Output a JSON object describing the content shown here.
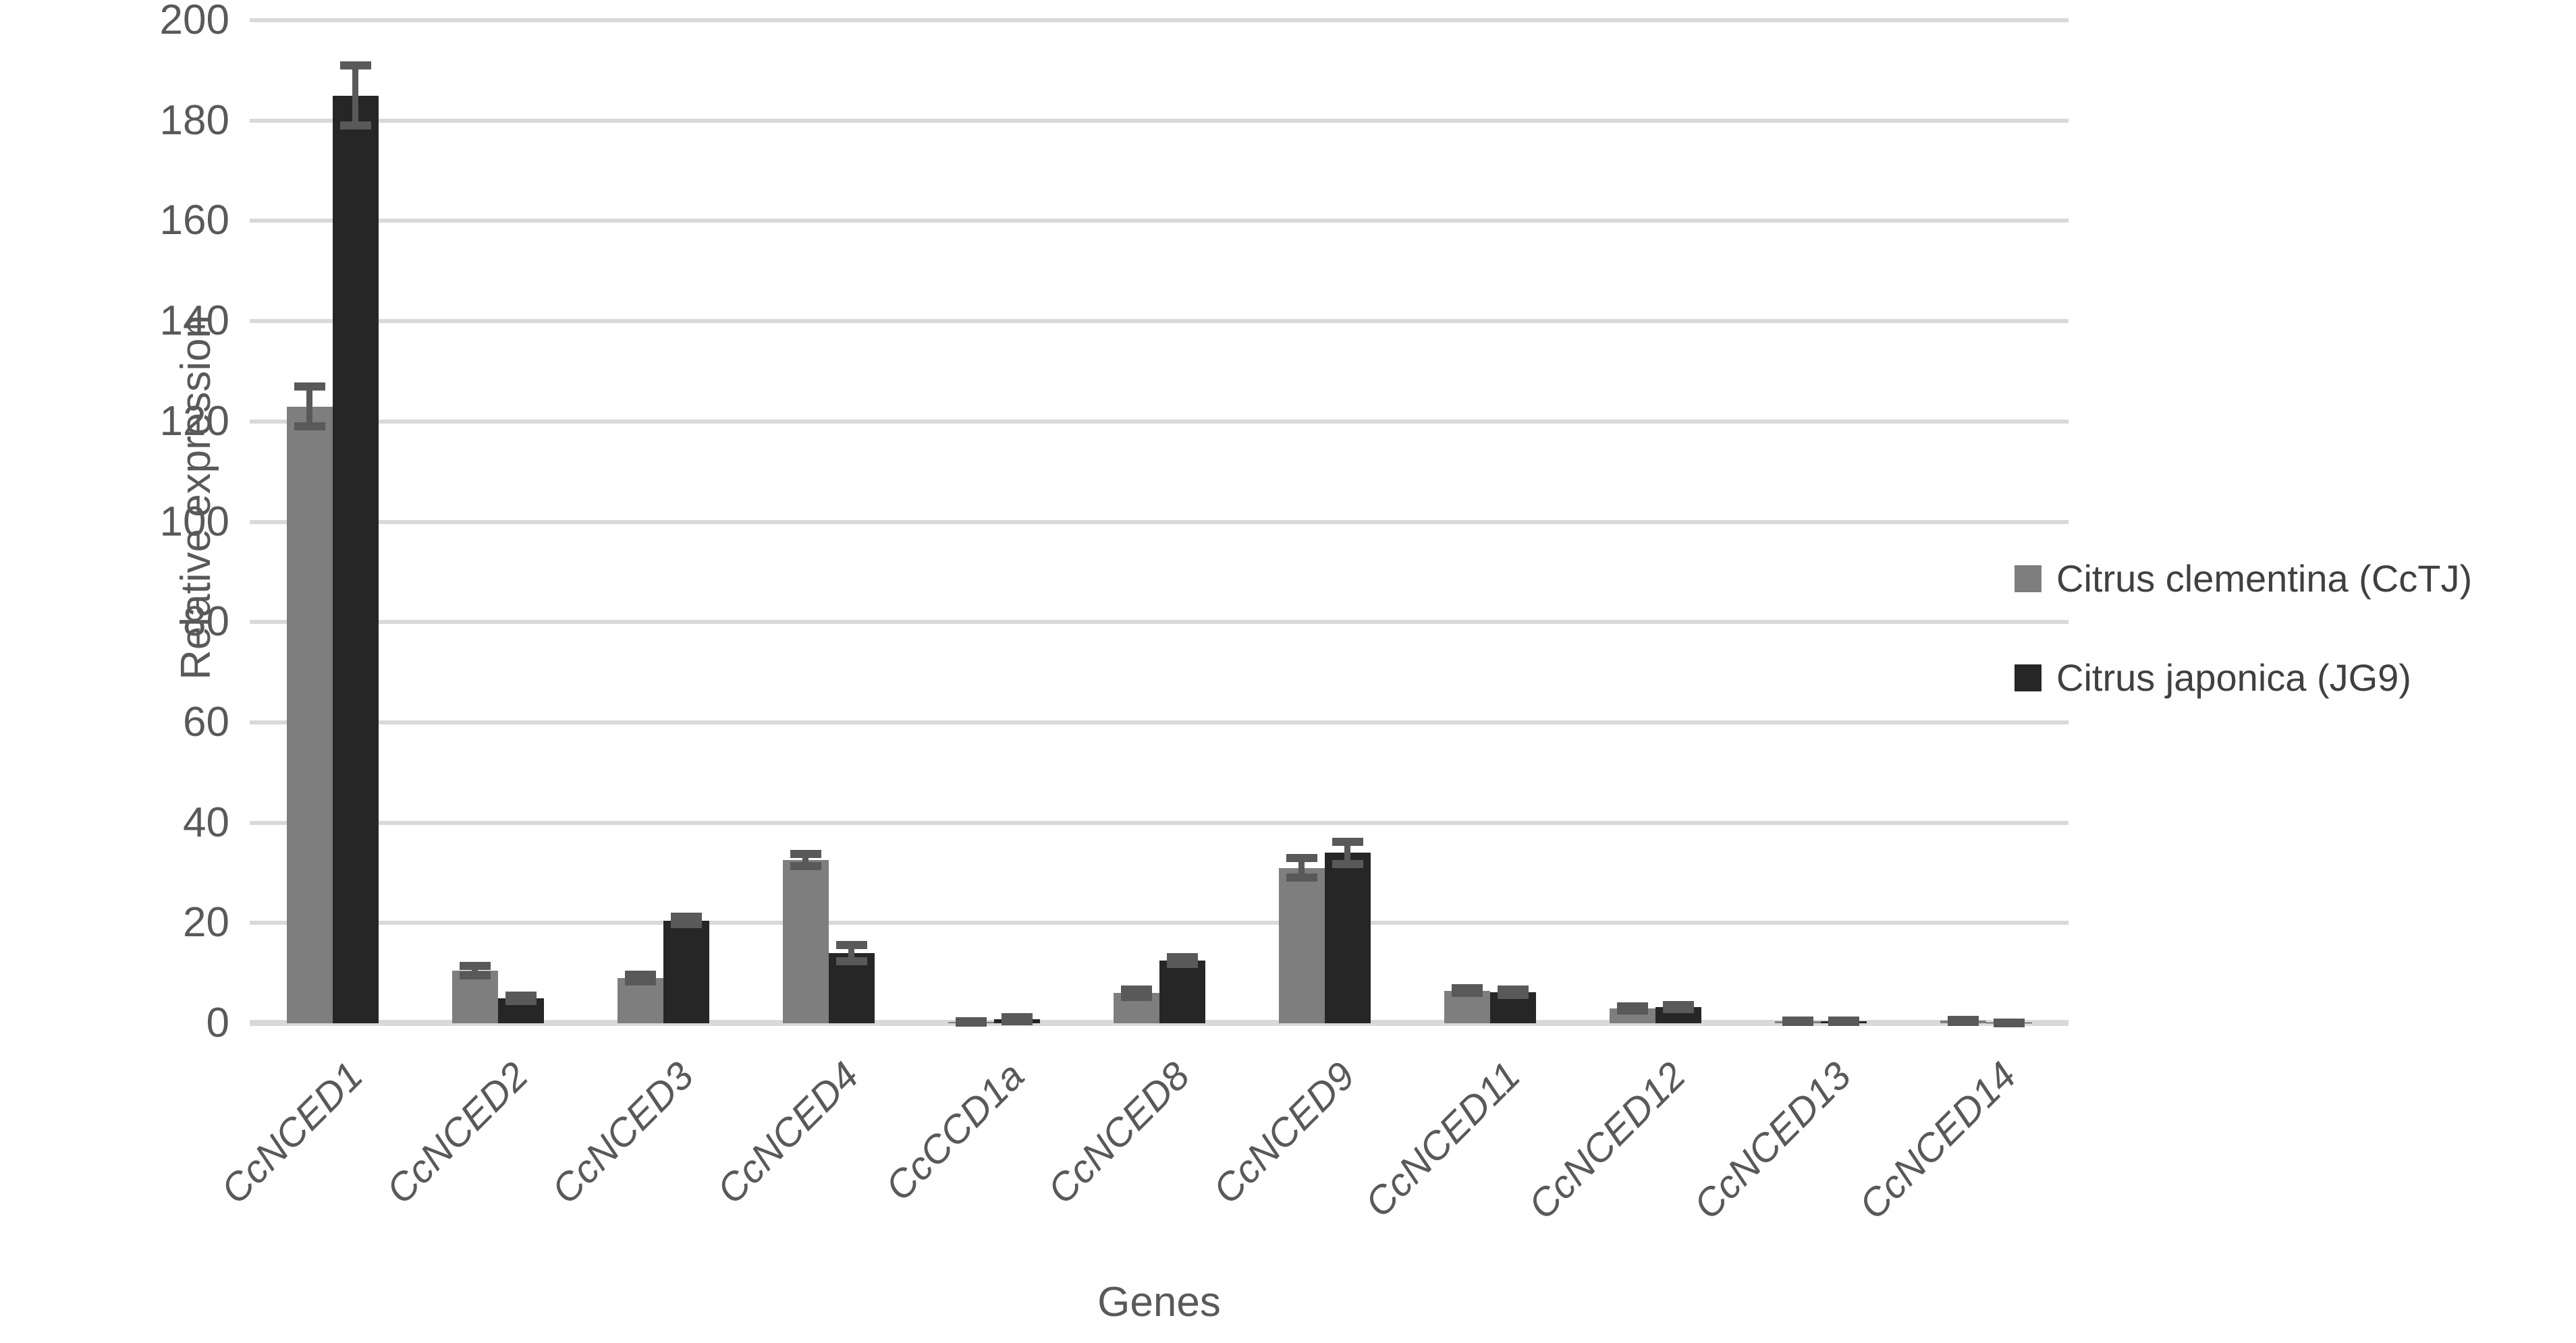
{
  "chart_data": {
    "type": "bar",
    "title": "",
    "xlabel": "Genes",
    "ylabel": "Relative expression",
    "ylim": [
      0,
      200
    ],
    "yticks": [
      0,
      20,
      40,
      60,
      80,
      100,
      120,
      140,
      160,
      180,
      200
    ],
    "grid": "horizontal",
    "legend_position": "right",
    "categories": [
      "CcNCED1",
      "CcNCED2",
      "CcNCED3",
      "CcNCED4",
      "CcCCD1a",
      "CcNCED8",
      "CcNCED9",
      "CcNCED11",
      "CcNCED12",
      "CcNCED13",
      "CcNCED14"
    ],
    "series": [
      {
        "name": "Citrus clementina (CcTJ)",
        "color": "#7e7e7e",
        "values": [
          123,
          10.5,
          9,
          32.5,
          0.3,
          6,
          31,
          6.5,
          3,
          0.4,
          0.5
        ],
        "errors": [
          4,
          0.9,
          0.7,
          1.2,
          0.15,
          0.7,
          1.9,
          0.5,
          0.4,
          0.15,
          0.2
        ]
      },
      {
        "name": "Citrus japonica (JG9)",
        "color": "#262626",
        "values": [
          185,
          5,
          20.5,
          14,
          0.8,
          12.5,
          34,
          6.2,
          3.2,
          0.4,
          0.1
        ],
        "errors": [
          6,
          0.5,
          0.7,
          1.6,
          0.4,
          0.7,
          2.2,
          0.5,
          0.4,
          0.15,
          0.05
        ]
      }
    ],
    "colors": {
      "gridline": "#d9d9d9",
      "axis_text": "#595959",
      "error_bar": "#595959",
      "legend_text": "#404040"
    }
  }
}
